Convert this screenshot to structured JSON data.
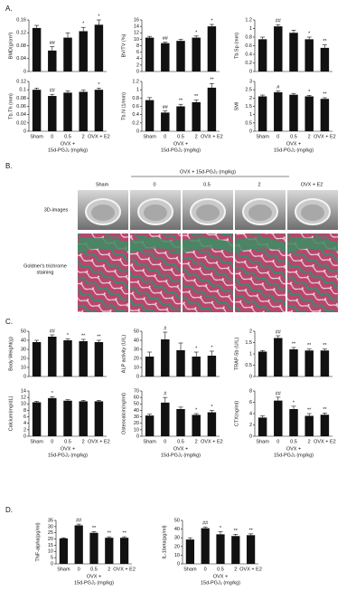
{
  "panel_labels": [
    "A.",
    "B.",
    "C.",
    "D."
  ],
  "image_panel": {
    "group_label": "OVX + 15d-PGJ₂ (mg/kg)",
    "columns": [
      "Sham",
      "0",
      "0.5",
      "2",
      "OVX + E2"
    ],
    "rows": [
      [
        "3D-images"
      ],
      [
        "Goldner's trichrome",
        "staining"
      ]
    ]
  },
  "chart_data": [
    {
      "type": "bar",
      "ylabel": "BMD(g/cm³)",
      "categories": [
        null,
        null,
        null,
        null,
        null
      ],
      "values": [
        0.135,
        0.065,
        0.105,
        0.125,
        0.145
      ],
      "errors": [
        0.008,
        0.012,
        0.015,
        0.012,
        0.015
      ],
      "annotations": [
        null,
        "##",
        null,
        "*",
        "*"
      ],
      "ylim": [
        0,
        0.16
      ],
      "yticks": [
        0,
        0.04,
        0.08,
        0.12,
        0.16
      ],
      "color": "#111111"
    },
    {
      "type": "bar",
      "ylabel": "BV/TV (%)",
      "categories": [
        null,
        null,
        null,
        null,
        null
      ],
      "values": [
        10.5,
        8.8,
        9.5,
        10.5,
        14
      ],
      "errors": [
        0.4,
        0.3,
        0.5,
        0.5,
        0.6
      ],
      "annotations": [
        null,
        "##",
        null,
        "*",
        "*"
      ],
      "ylim": [
        0,
        16
      ],
      "yticks": [
        0,
        2,
        4,
        6,
        8,
        10,
        12,
        14,
        16
      ],
      "color": "#111111"
    },
    {
      "type": "bar",
      "ylabel": "Tb.Sp (mm)",
      "categories": [
        null,
        null,
        null,
        null,
        null
      ],
      "values": [
        0.75,
        1.05,
        0.9,
        0.75,
        0.55
      ],
      "errors": [
        0.05,
        0.04,
        0.06,
        0.05,
        0.07
      ],
      "annotations": [
        null,
        "##",
        null,
        "*",
        "**"
      ],
      "ylim": [
        0,
        1.2
      ],
      "yticks": [
        0,
        0.2,
        0.4,
        0.6,
        0.8,
        1,
        1.2
      ],
      "color": "#111111"
    },
    {
      "type": "bar",
      "ylabel": "Tb.Th (mm)",
      "categories": [
        "Sham",
        "0",
        "0.5",
        "2",
        "OVX + E2"
      ],
      "x_group_label": [
        "OVX +",
        "15d-PGJ₂ (mg/kg)"
      ],
      "values": [
        0.1,
        0.085,
        0.093,
        0.095,
        0.1
      ],
      "errors": [
        0.004,
        0.004,
        0.004,
        0.004,
        0.004
      ],
      "annotations": [
        null,
        "##",
        null,
        null,
        "*"
      ],
      "ylim": [
        0,
        0.12
      ],
      "yticks": [
        0,
        0.02,
        0.04,
        0.06,
        0.08,
        0.1,
        0.12
      ],
      "color": "#111111"
    },
    {
      "type": "bar",
      "ylabel": "Tb.N (1/mm)",
      "categories": [
        "Sham",
        "0",
        "0.5",
        "2",
        "OVX + E2"
      ],
      "x_group_label": [
        "OVX +",
        "15d-PGJ₂ (mg/kg)"
      ],
      "values": [
        0.75,
        0.45,
        0.6,
        0.7,
        1.05
      ],
      "errors": [
        0.06,
        0.04,
        0.05,
        0.05,
        0.1
      ],
      "annotations": [
        null,
        "##",
        "**",
        "**",
        "**"
      ],
      "ylim": [
        0,
        1.2
      ],
      "yticks": [
        0,
        0.2,
        0.4,
        0.6,
        0.8,
        1,
        1.2
      ],
      "color": "#111111"
    },
    {
      "type": "bar",
      "ylabel": "SMI",
      "categories": [
        "Sham",
        "0",
        "0.5",
        "2",
        "OVX + E2"
      ],
      "x_group_label": [
        "OVX +",
        "15d-PGJ₂ (mg/kg)"
      ],
      "values": [
        2.1,
        2.35,
        2.2,
        2.1,
        1.95
      ],
      "errors": [
        0.08,
        0.07,
        0.08,
        0.06,
        0.07
      ],
      "annotations": [
        null,
        "#",
        null,
        "*",
        "**"
      ],
      "ylim": [
        0,
        3
      ],
      "yticks": [
        0,
        0.5,
        1,
        1.5,
        2,
        2.5,
        3
      ],
      "color": "#111111"
    },
    {
      "type": "bar",
      "ylabel": "Body Weight(g)",
      "categories": [
        null,
        null,
        null,
        null,
        null
      ],
      "values": [
        38,
        44,
        40,
        39,
        38
      ],
      "errors": [
        2,
        2,
        1.5,
        2,
        2
      ],
      "annotations": [
        null,
        "##",
        "*",
        "**",
        "**"
      ],
      "ylim": [
        0,
        50
      ],
      "yticks": [
        0,
        10,
        20,
        30,
        40,
        50
      ],
      "color": "#111111"
    },
    {
      "type": "bar",
      "ylabel": "ALP activity (U/L)",
      "categories": [
        null,
        null,
        null,
        null,
        null
      ],
      "values": [
        22,
        41,
        29,
        22,
        23
      ],
      "errors": [
        5,
        8,
        8,
        5,
        5
      ],
      "annotations": [
        null,
        "#",
        null,
        "*",
        "*"
      ],
      "ylim": [
        0,
        50
      ],
      "yticks": [
        0,
        10,
        20,
        30,
        40,
        50
      ],
      "color": "#111111"
    },
    {
      "type": "bar",
      "ylabel": "TRAP-5b (U/L)",
      "categories": [
        null,
        null,
        null,
        null,
        null
      ],
      "values": [
        1.1,
        1.7,
        1.2,
        1.15,
        1.15
      ],
      "errors": [
        0.05,
        0.1,
        0.08,
        0.06,
        0.06
      ],
      "annotations": [
        null,
        "##",
        "**",
        "**",
        "**"
      ],
      "ylim": [
        0,
        2
      ],
      "yticks": [
        0,
        0.5,
        1,
        1.5,
        2
      ],
      "color": "#111111"
    },
    {
      "type": "bar",
      "ylabel": "Calcium(mg/dL)",
      "categories": [
        "Sham",
        "0",
        "0.5",
        "2",
        "OVX + E2"
      ],
      "x_group_label": [
        "OVX +",
        "15d-PGJ₂ (mg/kg)"
      ],
      "values": [
        10.5,
        11.8,
        11,
        10.8,
        10.8
      ],
      "errors": [
        0.3,
        0.4,
        0.3,
        0.3,
        0.3
      ],
      "annotations": [
        null,
        "*",
        null,
        null,
        null
      ],
      "ylim": [
        0,
        14
      ],
      "yticks": [
        0,
        2,
        4,
        6,
        8,
        10,
        12,
        14
      ],
      "color": "#111111"
    },
    {
      "type": "bar",
      "ylabel": "Osteocalcin(ng/ml)",
      "categories": [
        "Sham",
        "0",
        "0.5",
        "2",
        "OVX + E2"
      ],
      "x_group_label": [
        "OVX +",
        "15d-PGJ₂ (mg/kg)"
      ],
      "values": [
        32,
        52,
        42,
        33,
        37
      ],
      "errors": [
        2,
        8,
        3,
        2,
        3
      ],
      "annotations": [
        null,
        "#",
        null,
        "*",
        "*"
      ],
      "ylim": [
        0,
        70
      ],
      "yticks": [
        0,
        10,
        20,
        30,
        40,
        50,
        60,
        70
      ],
      "color": "#111111"
    },
    {
      "type": "bar",
      "ylabel": "CTX(ng/ml)",
      "categories": [
        "Sham",
        "0",
        "0.5",
        "2",
        "OVX + E2"
      ],
      "x_group_label": [
        "OVX +",
        "15d-PGJ₂ (mg/kg)"
      ],
      "values": [
        3.3,
        6.3,
        4.8,
        3.6,
        3.8
      ],
      "errors": [
        0.3,
        0.6,
        0.5,
        0.4,
        0.3
      ],
      "annotations": [
        null,
        "##",
        "*",
        "**",
        "**"
      ],
      "ylim": [
        0,
        8
      ],
      "yticks": [
        0,
        2,
        4,
        6,
        8
      ],
      "color": "#111111"
    },
    {
      "type": "bar",
      "ylabel": "TNF-alpha(pg/ml)",
      "categories": [
        "Sham",
        "0",
        "0.5",
        "2",
        "OVX + E2"
      ],
      "x_group_label": [
        "OVX +",
        "15d-PGJ₂ (mg/kg)"
      ],
      "values": [
        20.5,
        31,
        25,
        21,
        21
      ],
      "errors": [
        0.5,
        1,
        1,
        0.8,
        0.8
      ],
      "annotations": [
        null,
        "##",
        "**",
        "**",
        "**"
      ],
      "ylim": [
        0,
        35
      ],
      "yticks": [
        0,
        5,
        10,
        15,
        20,
        25,
        30,
        35
      ],
      "color": "#111111"
    },
    {
      "type": "bar",
      "ylabel": "IL-1beta(pg/ml)",
      "categories": [
        "Sham",
        "0",
        "0.5",
        "2",
        "OVX + E2"
      ],
      "x_group_label": [
        "OVX +",
        "15d-PGJ₂ (mg/kg)"
      ],
      "values": [
        28,
        41,
        34,
        32,
        33
      ],
      "errors": [
        2,
        1.5,
        3,
        2,
        1.5
      ],
      "annotations": [
        null,
        "##",
        "*",
        "**",
        "**"
      ],
      "ylim": [
        0,
        50
      ],
      "yticks": [
        0,
        10,
        20,
        30,
        40,
        50
      ],
      "color": "#111111"
    }
  ]
}
